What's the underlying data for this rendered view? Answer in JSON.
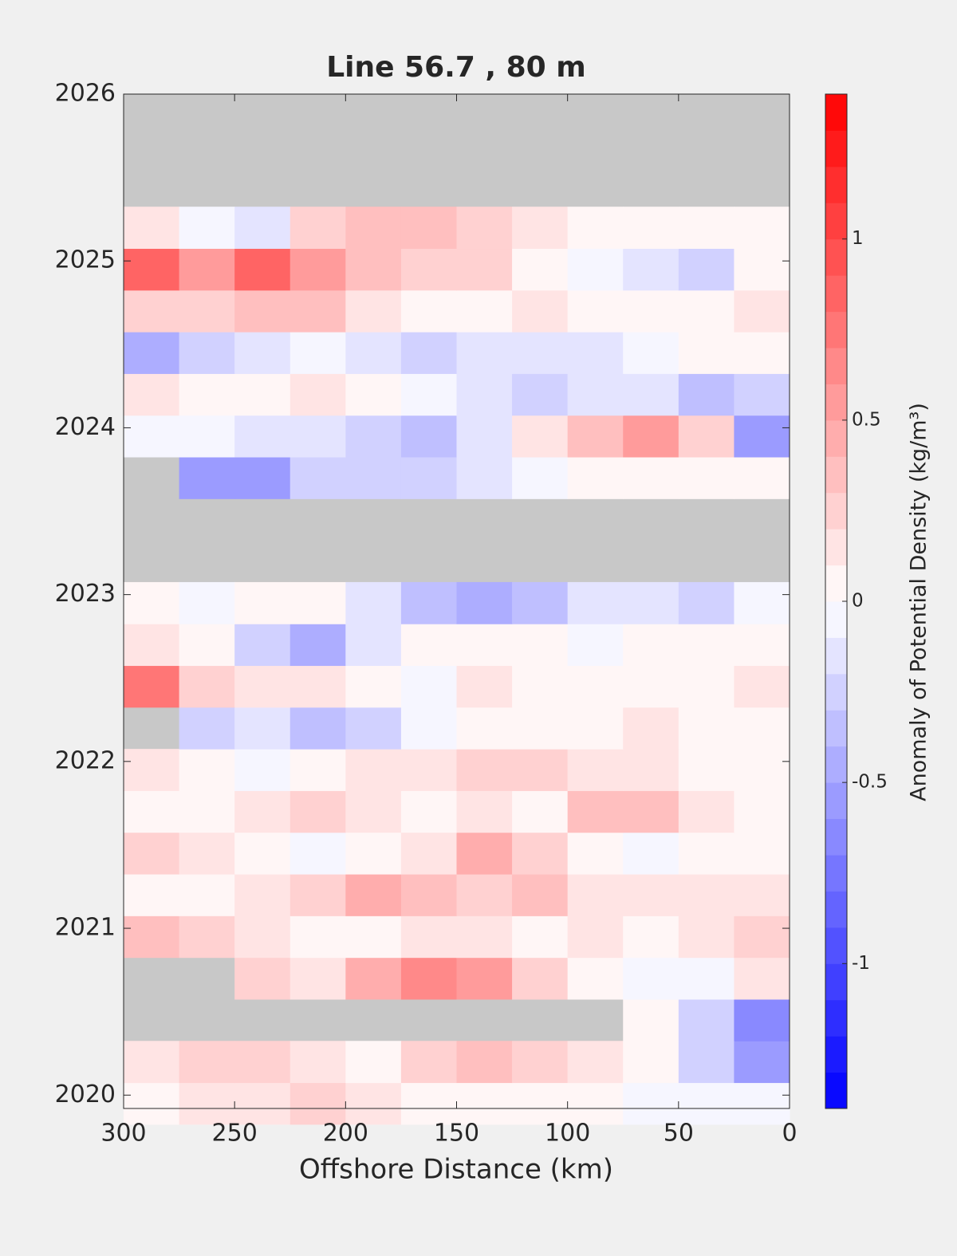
{
  "chart_data": {
    "type": "contour",
    "title": "Line 56.7 , 80 m",
    "x_label": "Offshore Distance (km)",
    "colorbar_label": "Anomaly of Potential Density (kg/m³)",
    "xlim": [
      300,
      0
    ],
    "xticks": [
      300,
      250,
      200,
      150,
      100,
      50,
      0
    ],
    "ylim": [
      2019.92,
      2026
    ],
    "yticks": [
      2020,
      2021,
      2022,
      2023,
      2024,
      2025,
      2026
    ],
    "clim": [
      -1.4,
      1.4
    ],
    "cticks": [
      -1,
      -0.5,
      0,
      0.5,
      1
    ],
    "contour_step": 0.1,
    "colormap": [
      "#0000ff",
      "#ffffff",
      "#ff0000"
    ],
    "missing_color": "#c8c8c8",
    "x": [
      287.5,
      262.5,
      237.5,
      212.5,
      187.5,
      162.5,
      137.5,
      112.5,
      87.5,
      62.5,
      37.5,
      12.5
    ],
    "y": [
      2019.95,
      2020.2,
      2020.45,
      2020.7,
      2020.95,
      2021.2,
      2021.45,
      2021.7,
      2021.95,
      2022.2,
      2022.45,
      2022.7,
      2022.95,
      2023.2,
      2023.45,
      2023.7,
      2023.95,
      2024.2,
      2024.45,
      2024.7,
      2024.95,
      2025.2
    ],
    "z": [
      [
        0,
        0.1,
        0.1,
        0.2,
        0.1,
        0,
        0,
        0,
        0,
        -0.1,
        -0.1,
        -0.1
      ],
      [
        0.1,
        0.2,
        0.2,
        0.1,
        0,
        0.2,
        0.3,
        0.2,
        0.1,
        0,
        -0.3,
        -0.6
      ],
      [
        null,
        null,
        null,
        null,
        null,
        null,
        null,
        null,
        null,
        0,
        -0.3,
        -0.7
      ],
      [
        null,
        null,
        0.2,
        0.1,
        0.4,
        0.6,
        0.5,
        0.2,
        0,
        -0.1,
        -0.1,
        0.1
      ],
      [
        0.3,
        0.2,
        0.1,
        0,
        0,
        0.1,
        0.1,
        0,
        0.1,
        0,
        0.1,
        0.2
      ],
      [
        0,
        0,
        0.1,
        0.2,
        0.4,
        0.3,
        0.2,
        0.3,
        0.1,
        0.1,
        0.1,
        0.1
      ],
      [
        0.2,
        0.1,
        0,
        -0.1,
        0,
        0.1,
        0.4,
        0.2,
        0,
        -0.1,
        0,
        0
      ],
      [
        0,
        0,
        0.1,
        0.2,
        0.1,
        0,
        0.1,
        0,
        0.3,
        0.3,
        0.1,
        0
      ],
      [
        0.1,
        0,
        -0.1,
        0,
        0.1,
        0.1,
        0.2,
        0.2,
        0.1,
        0.1,
        0,
        0
      ],
      [
        null,
        -0.3,
        -0.2,
        -0.4,
        -0.3,
        -0.1,
        0,
        0,
        0,
        0.1,
        0,
        0
      ],
      [
        0.7,
        0.2,
        0.1,
        0.1,
        0,
        -0.1,
        0.1,
        0,
        0,
        0,
        0,
        0.1
      ],
      [
        0.1,
        0,
        -0.3,
        -0.5,
        -0.2,
        0,
        0,
        0,
        -0.1,
        0,
        0,
        0
      ],
      [
        0,
        -0.1,
        0,
        0,
        -0.2,
        -0.4,
        -0.5,
        -0.4,
        -0.2,
        -0.2,
        -0.3,
        -0.1
      ],
      [
        null,
        null,
        null,
        null,
        null,
        null,
        null,
        null,
        null,
        null,
        null,
        null
      ],
      [
        null,
        null,
        null,
        null,
        null,
        null,
        null,
        null,
        null,
        null,
        null,
        null
      ],
      [
        null,
        -0.6,
        -0.6,
        -0.3,
        -0.3,
        -0.3,
        -0.2,
        -0.1,
        0,
        0,
        0,
        0
      ],
      [
        -0.1,
        -0.1,
        -0.2,
        -0.2,
        -0.3,
        -0.4,
        -0.2,
        0.1,
        0.3,
        0.5,
        0.2,
        -0.6
      ],
      [
        0.1,
        0,
        0,
        0.1,
        0,
        -0.1,
        -0.2,
        -0.3,
        -0.2,
        -0.2,
        -0.4,
        -0.3
      ],
      [
        -0.5,
        -0.3,
        -0.2,
        -0.1,
        -0.2,
        -0.3,
        -0.2,
        -0.2,
        -0.2,
        -0.1,
        0,
        0
      ],
      [
        0.2,
        0.2,
        0.3,
        0.3,
        0.1,
        0,
        0,
        0.1,
        0,
        0,
        0,
        0.1
      ],
      [
        0.8,
        0.5,
        0.8,
        0.5,
        0.3,
        0.2,
        0.2,
        0,
        -0.1,
        -0.2,
        -0.3,
        0
      ],
      [
        0.1,
        -0.1,
        -0.2,
        0.2,
        0.3,
        0.3,
        0.2,
        0.1,
        0,
        0,
        0,
        0
      ]
    ]
  }
}
